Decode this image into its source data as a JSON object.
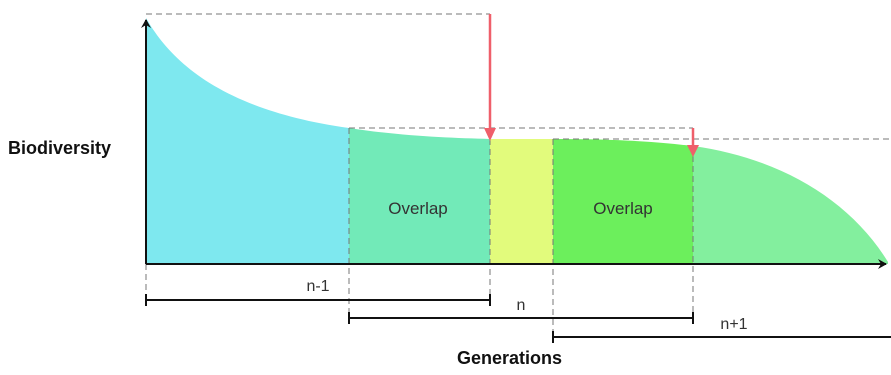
{
  "axes": {
    "y_label": "Biodiversity",
    "x_label": "Generations"
  },
  "regions": {
    "overlap_left": "Overlap",
    "overlap_right": "Overlap"
  },
  "generations": {
    "prev": "n-1",
    "current": "n",
    "next": "n+1"
  },
  "colors": {
    "cyan_region": "#7ee8ef",
    "overlap_left": "#72eab8",
    "middle_band": "#e2fb7c",
    "overlap_right": "#6cef5c",
    "tail_region": "#83ef9e",
    "arrow": "#ef5f6a",
    "dashes": "#777777"
  }
}
